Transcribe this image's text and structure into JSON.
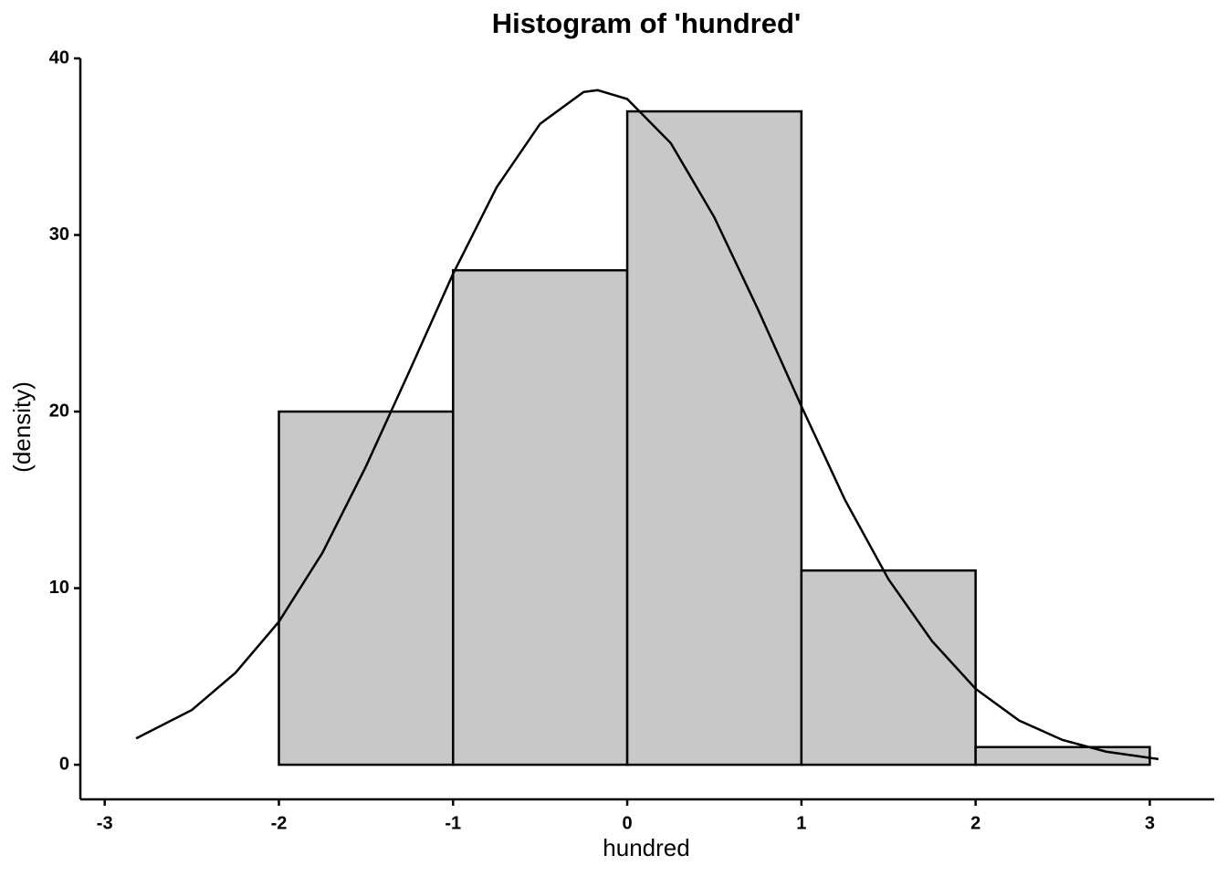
{
  "chart_data": {
    "type": "histogram",
    "title": "Histogram of 'hundred'",
    "xlabel": "hundred",
    "ylabel": "(density)",
    "bins": [
      -2,
      -1,
      0,
      1,
      2,
      3
    ],
    "counts": [
      20,
      28,
      37,
      11,
      1
    ],
    "color": "#c8c8c8",
    "xlim": [
      -3.14,
      3.37
    ],
    "xticks": [
      -3,
      -2,
      -1,
      0,
      1,
      2,
      3
    ],
    "ylim": [
      -1.96,
      40
    ],
    "yticks": [
      0,
      10,
      20,
      30,
      40
    ],
    "curve": {
      "type": "line",
      "color": "#000000",
      "x": [
        -2.82,
        -2.5,
        -2.25,
        -2,
        -1.75,
        -1.5,
        -1.25,
        -1,
        -0.75,
        -0.5,
        -0.25,
        -0.17,
        0,
        0.25,
        0.5,
        0.75,
        1,
        1.25,
        1.5,
        1.75,
        2,
        2.25,
        2.5,
        2.75,
        3.05
      ],
      "values": [
        1.49,
        3.1,
        5.2,
        8.1,
        12.0,
        16.9,
        22.3,
        27.8,
        32.7,
        36.3,
        38.1,
        38.2,
        37.7,
        35.2,
        31.0,
        25.8,
        20.3,
        15.0,
        10.5,
        7.0,
        4.3,
        2.5,
        1.4,
        0.74,
        0.32
      ]
    }
  }
}
